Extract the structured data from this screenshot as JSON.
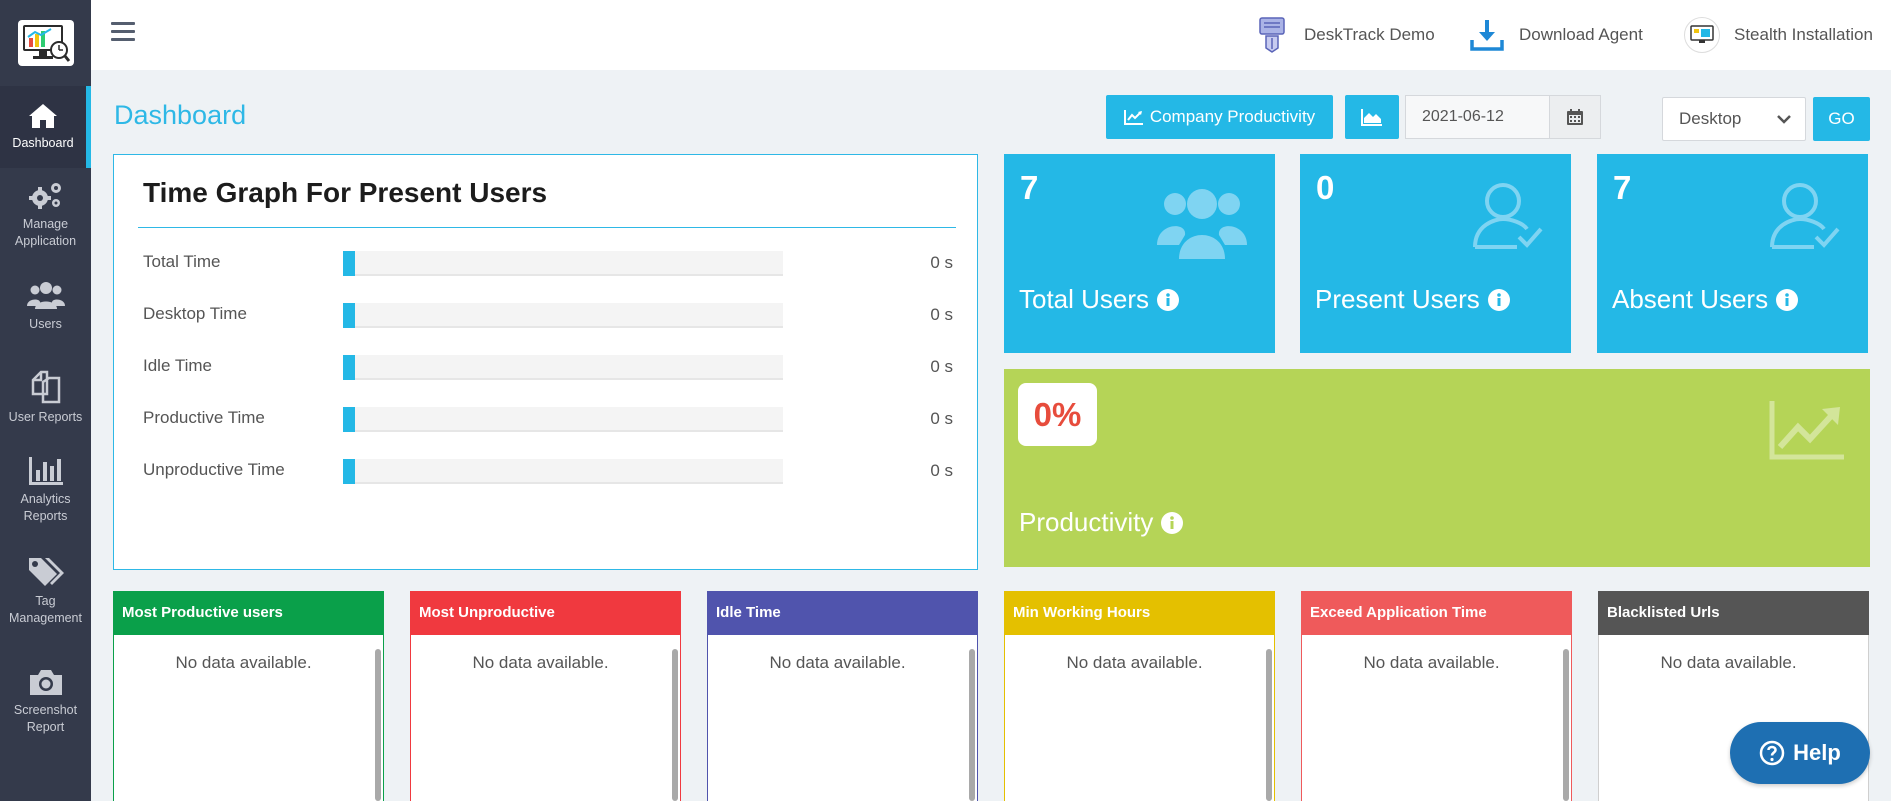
{
  "sidebar": {
    "items": [
      {
        "label": "Dashboard",
        "icon": "home-icon"
      },
      {
        "label": "Manage Application",
        "icon": "gears-icon"
      },
      {
        "label": "Users",
        "icon": "users-icon"
      },
      {
        "label": "User Reports",
        "icon": "documents-icon"
      },
      {
        "label": "Analytics Reports",
        "icon": "bar-chart-icon"
      },
      {
        "label": "Tag Management",
        "icon": "tags-icon"
      },
      {
        "label": "Screenshot Report",
        "icon": "camera-icon"
      }
    ]
  },
  "topbar": {
    "demo_label": "DeskTrack Demo",
    "download_label": "Download Agent",
    "stealth_label": "Stealth Installation"
  },
  "header": {
    "title": "Dashboard",
    "company_productivity_label": "Company Productivity",
    "date_value": "2021-06-12",
    "platform_select": "Desktop",
    "go_label": "GO"
  },
  "time_graph": {
    "title": "Time Graph For Present Users",
    "rows": [
      {
        "label": "Total Time",
        "value": "0 s",
        "fill_percent": 0
      },
      {
        "label": "Desktop Time",
        "value": "0 s",
        "fill_percent": 0
      },
      {
        "label": "Idle Time",
        "value": "0 s",
        "fill_percent": 0
      },
      {
        "label": "Productive Time",
        "value": "0 s",
        "fill_percent": 0
      },
      {
        "label": "Unproductive Time",
        "value": "0 s",
        "fill_percent": 0
      }
    ]
  },
  "stats": {
    "total_users": {
      "value": "7",
      "label": "Total Users"
    },
    "present_users": {
      "value": "0",
      "label": "Present Users"
    },
    "absent_users": {
      "value": "7",
      "label": "Absent Users"
    }
  },
  "productivity": {
    "value": "0%",
    "label": "Productivity"
  },
  "panels": [
    {
      "title": "Most Productive users",
      "empty": "No data available.",
      "color": "#0aa04a"
    },
    {
      "title": "Most Unproductive",
      "empty": "No data available.",
      "color": "#f0393f"
    },
    {
      "title": "Idle Time",
      "empty": "No data available.",
      "color": "#5054ad"
    },
    {
      "title": "Min Working Hours",
      "empty": "No data available.",
      "color": "#e4c000"
    },
    {
      "title": "Exceed Application Time",
      "empty": "No data available.",
      "color": "#ef5a5b"
    },
    {
      "title": "Blacklisted Urls",
      "empty": "No data available.",
      "color": "#555555"
    }
  ],
  "help": {
    "label": "Help"
  },
  "colors": {
    "accent": "#24b8e6",
    "sidebar": "#343a4b",
    "productivity": "#b5d457",
    "help": "#1e6fb2"
  }
}
